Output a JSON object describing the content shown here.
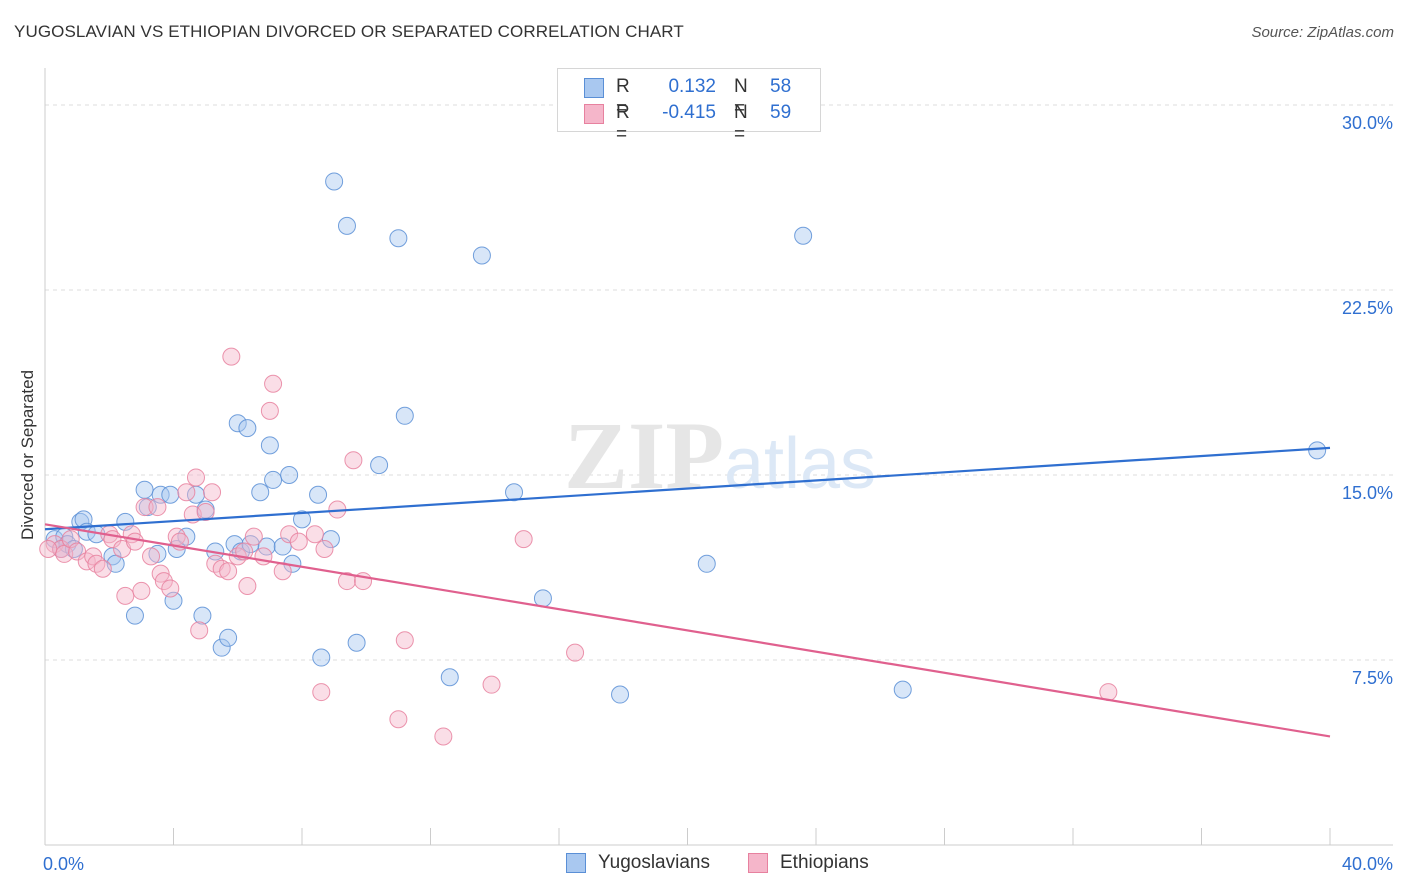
{
  "chart_data": {
    "type": "scatter",
    "title": "YUGOSLAVIAN VS ETHIOPIAN DIVORCED OR SEPARATED CORRELATION CHART",
    "source": "Source: ZipAtlas.com",
    "xlabel": "",
    "ylabel": "Divorced or Separated",
    "xlim": [
      0,
      40
    ],
    "ylim": [
      0,
      31.5
    ],
    "x_tick_labels": [
      "0.0%",
      "40.0%"
    ],
    "y_ticks": [
      7.5,
      15.0,
      22.5,
      30.0
    ],
    "y_tick_labels": [
      "7.5%",
      "15.0%",
      "22.5%",
      "30.0%"
    ],
    "grid": "horizontal dashed",
    "watermark": "ZIPatlas",
    "legend": {
      "rows": [
        {
          "r_label": "R =",
          "r_value": "0.132",
          "n_label": "N =",
          "n_value": "58"
        },
        {
          "r_label": "R =",
          "r_value": "-0.415",
          "n_label": "N =",
          "n_value": "59"
        }
      ],
      "bottom": [
        "Yugoslavians",
        "Ethiopians"
      ]
    },
    "colors": {
      "blue_fill": "#a9c8f0",
      "blue_stroke": "#5a8fd6",
      "blue_line": "#2f6fd0",
      "pink_fill": "#f5b6ca",
      "pink_stroke": "#e7819f",
      "pink_line": "#e0608e",
      "tick_label": "#2f6fd0"
    },
    "series": [
      {
        "name": "Yugoslavians",
        "trend": {
          "x0": 0,
          "y0": 12.8,
          "x1": 40,
          "y1": 16.1
        },
        "points": [
          [
            0.3,
            12.4
          ],
          [
            0.5,
            12.0
          ],
          [
            0.6,
            12.5
          ],
          [
            0.7,
            12.2
          ],
          [
            0.9,
            12.0
          ],
          [
            1.1,
            13.1
          ],
          [
            1.2,
            13.2
          ],
          [
            1.3,
            12.7
          ],
          [
            1.6,
            12.6
          ],
          [
            2.1,
            11.7
          ],
          [
            2.2,
            11.4
          ],
          [
            2.5,
            13.1
          ],
          [
            2.8,
            9.3
          ],
          [
            3.1,
            14.4
          ],
          [
            3.2,
            13.7
          ],
          [
            3.5,
            11.8
          ],
          [
            3.6,
            14.2
          ],
          [
            3.9,
            14.2
          ],
          [
            4.0,
            9.9
          ],
          [
            4.1,
            12.0
          ],
          [
            4.4,
            12.5
          ],
          [
            4.7,
            14.2
          ],
          [
            4.9,
            9.3
          ],
          [
            5.0,
            13.6
          ],
          [
            5.3,
            11.9
          ],
          [
            5.5,
            8.0
          ],
          [
            5.7,
            8.4
          ],
          [
            5.9,
            12.2
          ],
          [
            6.0,
            17.1
          ],
          [
            6.1,
            11.9
          ],
          [
            6.3,
            16.9
          ],
          [
            6.4,
            12.2
          ],
          [
            6.7,
            14.3
          ],
          [
            6.9,
            12.1
          ],
          [
            7.0,
            16.2
          ],
          [
            7.1,
            14.8
          ],
          [
            7.4,
            12.1
          ],
          [
            7.6,
            15.0
          ],
          [
            7.7,
            11.4
          ],
          [
            8.0,
            13.2
          ],
          [
            8.5,
            14.2
          ],
          [
            8.6,
            7.6
          ],
          [
            8.9,
            12.4
          ],
          [
            9.0,
            26.9
          ],
          [
            9.4,
            25.1
          ],
          [
            9.7,
            8.2
          ],
          [
            10.4,
            15.4
          ],
          [
            11.0,
            24.6
          ],
          [
            11.2,
            17.4
          ],
          [
            12.6,
            6.8
          ],
          [
            13.6,
            23.9
          ],
          [
            14.6,
            14.3
          ],
          [
            15.5,
            10.0
          ],
          [
            17.9,
            6.1
          ],
          [
            20.6,
            11.4
          ],
          [
            23.6,
            24.7
          ],
          [
            26.7,
            6.3
          ],
          [
            39.6,
            16.0
          ]
        ]
      },
      {
        "name": "Ethiopians",
        "trend": {
          "x0": 0,
          "y0": 13.0,
          "x1": 40,
          "y1": 4.4
        },
        "points": [
          [
            0.3,
            12.2
          ],
          [
            0.5,
            12.0
          ],
          [
            0.6,
            11.8
          ],
          [
            0.8,
            12.4
          ],
          [
            1.0,
            11.9
          ],
          [
            1.3,
            11.5
          ],
          [
            1.5,
            11.7
          ],
          [
            1.6,
            11.4
          ],
          [
            1.8,
            11.2
          ],
          [
            2.0,
            12.6
          ],
          [
            2.1,
            12.4
          ],
          [
            2.4,
            12.0
          ],
          [
            2.5,
            10.1
          ],
          [
            2.7,
            12.6
          ],
          [
            2.8,
            12.3
          ],
          [
            3.0,
            10.3
          ],
          [
            3.1,
            13.7
          ],
          [
            3.3,
            11.7
          ],
          [
            3.5,
            13.7
          ],
          [
            3.6,
            11.0
          ],
          [
            3.7,
            10.7
          ],
          [
            3.9,
            10.4
          ],
          [
            4.1,
            12.5
          ],
          [
            4.2,
            12.3
          ],
          [
            4.4,
            14.3
          ],
          [
            4.6,
            13.4
          ],
          [
            4.7,
            14.9
          ],
          [
            4.8,
            8.7
          ],
          [
            5.0,
            13.5
          ],
          [
            5.2,
            14.3
          ],
          [
            5.3,
            11.4
          ],
          [
            5.5,
            11.2
          ],
          [
            5.7,
            11.1
          ],
          [
            5.8,
            19.8
          ],
          [
            6.0,
            11.7
          ],
          [
            6.2,
            11.9
          ],
          [
            6.3,
            10.5
          ],
          [
            6.5,
            12.5
          ],
          [
            6.8,
            11.7
          ],
          [
            7.0,
            17.6
          ],
          [
            7.1,
            18.7
          ],
          [
            7.4,
            11.1
          ],
          [
            7.6,
            12.6
          ],
          [
            7.9,
            12.3
          ],
          [
            8.4,
            12.6
          ],
          [
            8.6,
            6.2
          ],
          [
            8.7,
            12.0
          ],
          [
            9.1,
            13.6
          ],
          [
            9.4,
            10.7
          ],
          [
            9.6,
            15.6
          ],
          [
            9.9,
            10.7
          ],
          [
            11.0,
            5.1
          ],
          [
            11.2,
            8.3
          ],
          [
            12.4,
            4.4
          ],
          [
            13.9,
            6.5
          ],
          [
            14.9,
            12.4
          ],
          [
            16.5,
            7.8
          ],
          [
            33.1,
            6.2
          ],
          [
            0.1,
            12.0
          ]
        ]
      }
    ]
  }
}
